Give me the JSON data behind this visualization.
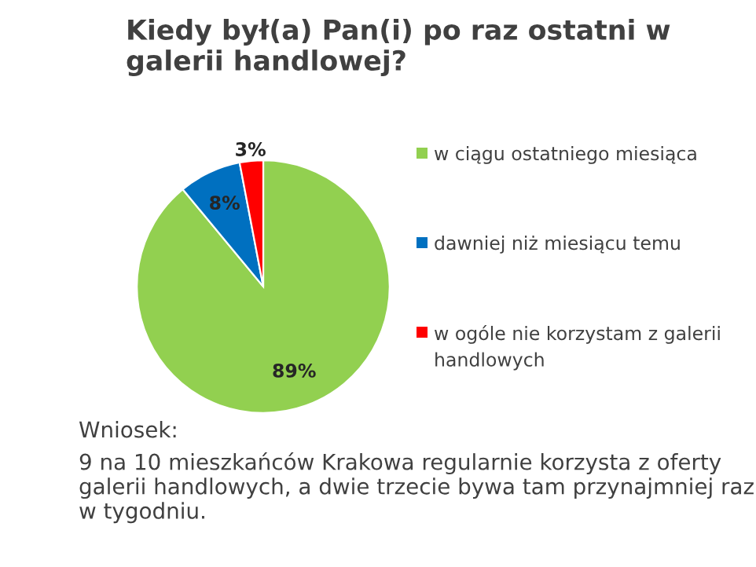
{
  "chart_data": {
    "type": "pie",
    "title": "Kiedy był(a) Pan(i) po raz ostatni w galerii handlowej?",
    "categories": [
      "w ciągu ostatniego miesiąca",
      "dawniej niż miesiącu temu",
      "w ogóle nie korzystam z galerii handlowych"
    ],
    "values": [
      89,
      8,
      3
    ],
    "colors": [
      "#92d050",
      "#0070c0",
      "#ff0000"
    ],
    "value_labels": [
      "89%",
      "8%",
      "3%"
    ],
    "legend": "right",
    "annotations": [
      "Wniosek:",
      "9 na 10 mieszkańców Krakowa regularnie korzysta z oferty galerii handlowych, a dwie trzecie bywa tam przynajmniej raz w tygodniu."
    ]
  }
}
